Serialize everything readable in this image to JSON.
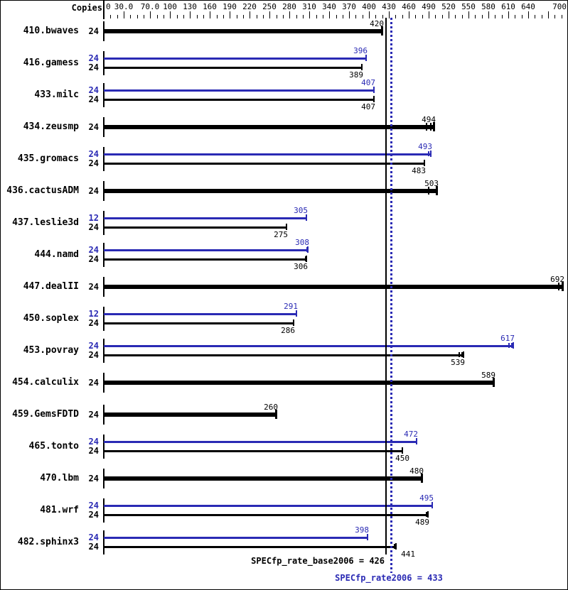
{
  "colors": {
    "base": "#000000",
    "peak": "#2a2ab4",
    "background": "#ffffff"
  },
  "chart_data": {
    "type": "bar",
    "orientation": "horizontal",
    "copies_header": "Copies",
    "xlabel": "",
    "ylabel": "",
    "xlim": [
      0,
      700
    ],
    "minor_tick_step": 10,
    "axis": {
      "long_ticks": [
        0,
        30,
        70,
        100,
        130,
        160,
        190,
        220,
        250,
        280,
        310,
        340,
        370,
        400,
        430,
        460,
        490,
        520,
        550,
        580,
        610,
        640,
        670,
        700
      ],
      "labels": [
        {
          "v": 0,
          "t": "0"
        },
        {
          "v": 30,
          "t": "30.0"
        },
        {
          "v": 70,
          "t": "70.0"
        },
        {
          "v": 100,
          "t": "100"
        },
        {
          "v": 130,
          "t": "130"
        },
        {
          "v": 160,
          "t": "160"
        },
        {
          "v": 190,
          "t": "190"
        },
        {
          "v": 220,
          "t": "220"
        },
        {
          "v": 250,
          "t": "250"
        },
        {
          "v": 280,
          "t": "280"
        },
        {
          "v": 310,
          "t": "310"
        },
        {
          "v": 340,
          "t": "340"
        },
        {
          "v": 370,
          "t": "370"
        },
        {
          "v": 400,
          "t": "400"
        },
        {
          "v": 430,
          "t": "430"
        },
        {
          "v": 460,
          "t": "460"
        },
        {
          "v": 490,
          "t": "490"
        },
        {
          "v": 520,
          "t": "520"
        },
        {
          "v": 550,
          "t": "550"
        },
        {
          "v": 580,
          "t": "580"
        },
        {
          "v": 610,
          "t": "610"
        },
        {
          "v": 640,
          "t": "640"
        },
        {
          "v": 700,
          "t": "700"
        }
      ]
    },
    "benchmarks": [
      {
        "name": "410.bwaves",
        "runs": [
          {
            "copies": "24",
            "kind": "base",
            "thick": true,
            "value": 420,
            "label": "420",
            "label_pos": "above"
          }
        ]
      },
      {
        "name": "416.gamess",
        "runs": [
          {
            "copies": "24",
            "kind": "peak",
            "value": 396,
            "label": "396",
            "label_pos": "above"
          },
          {
            "copies": "24",
            "kind": "base",
            "value": 389,
            "label": "389",
            "label_pos": "below"
          }
        ]
      },
      {
        "name": "433.milc",
        "runs": [
          {
            "copies": "24",
            "kind": "peak",
            "value": 407,
            "label": "407",
            "label_pos": "above"
          },
          {
            "copies": "24",
            "kind": "base",
            "value": 407,
            "label": "407",
            "label_pos": "below"
          }
        ]
      },
      {
        "name": "434.zeusmp",
        "runs": [
          {
            "copies": "24",
            "kind": "base",
            "thick": true,
            "value": 494,
            "label": "494",
            "label_pos": "above",
            "bar_end": 499,
            "marks": [
              486,
              492
            ]
          }
        ]
      },
      {
        "name": "435.gromacs",
        "runs": [
          {
            "copies": "24",
            "kind": "peak",
            "value": 493,
            "label": "493",
            "label_pos": "above",
            "marks": [
              489
            ]
          },
          {
            "copies": "24",
            "kind": "base",
            "value": 483,
            "label": "483",
            "label_pos": "below"
          }
        ]
      },
      {
        "name": "436.cactusADM",
        "runs": [
          {
            "copies": "24",
            "kind": "base",
            "thick": true,
            "value": 503,
            "label": "503",
            "label_pos": "above",
            "marks": [
              489
            ]
          }
        ]
      },
      {
        "name": "437.leslie3d",
        "runs": [
          {
            "copies": "12",
            "kind": "peak",
            "value": 305,
            "label": "305",
            "label_pos": "above"
          },
          {
            "copies": "24",
            "kind": "base",
            "value": 275,
            "label": "275",
            "label_pos": "below"
          }
        ]
      },
      {
        "name": "444.namd",
        "runs": [
          {
            "copies": "24",
            "kind": "peak",
            "value": 308,
            "label": "308",
            "label_pos": "above",
            "marks": [
              305
            ]
          },
          {
            "copies": "24",
            "kind": "base",
            "value": 306,
            "label": "306",
            "label_pos": "below",
            "marks": [
              303
            ]
          }
        ]
      },
      {
        "name": "447.dealII",
        "runs": [
          {
            "copies": "24",
            "kind": "base",
            "thick": true,
            "value": 692,
            "label": "692",
            "label_pos": "above",
            "marks": [
              685
            ]
          }
        ]
      },
      {
        "name": "450.soplex",
        "runs": [
          {
            "copies": "12",
            "kind": "peak",
            "value": 291,
            "label": "291",
            "label_pos": "above"
          },
          {
            "copies": "24",
            "kind": "base",
            "value": 286,
            "label": "286",
            "label_pos": "below"
          }
        ]
      },
      {
        "name": "453.povray",
        "runs": [
          {
            "copies": "24",
            "kind": "peak",
            "value": 617,
            "label": "617",
            "label_pos": "above",
            "marks": [
              610,
              614
            ]
          },
          {
            "copies": "24",
            "kind": "base",
            "value": 539,
            "label": "539",
            "label_pos": "below",
            "bar_end": 542,
            "marks": [
              535,
              539
            ]
          }
        ]
      },
      {
        "name": "454.calculix",
        "runs": [
          {
            "copies": "24",
            "kind": "base",
            "thick": true,
            "value": 589,
            "label": "589",
            "label_pos": "above"
          }
        ]
      },
      {
        "name": "459.GemsFDTD",
        "runs": [
          {
            "copies": "24",
            "kind": "base",
            "thick": true,
            "value": 260,
            "label": "260",
            "label_pos": "above"
          }
        ]
      },
      {
        "name": "465.tonto",
        "runs": [
          {
            "copies": "24",
            "kind": "peak",
            "value": 472,
            "label": "472",
            "label_pos": "above"
          },
          {
            "copies": "24",
            "kind": "base",
            "value": 450,
            "label": "450",
            "label_pos": "below",
            "label_dx": 8
          }
        ]
      },
      {
        "name": "470.lbm",
        "runs": [
          {
            "copies": "24",
            "kind": "base",
            "thick": true,
            "value": 480,
            "label": "480",
            "label_pos": "above"
          }
        ]
      },
      {
        "name": "481.wrf",
        "runs": [
          {
            "copies": "24",
            "kind": "peak",
            "value": 495,
            "label": "495",
            "label_pos": "above"
          },
          {
            "copies": "24",
            "kind": "base",
            "value": 489,
            "label": "489",
            "label_pos": "below",
            "marks": [
              486
            ]
          }
        ]
      },
      {
        "name": "482.sphinx3",
        "runs": [
          {
            "copies": "24",
            "kind": "peak",
            "value": 398,
            "label": "398",
            "label_pos": "above"
          },
          {
            "copies": "24",
            "kind": "base",
            "value": 441,
            "label": "441",
            "label_pos": "below",
            "marks": [
              437
            ],
            "label_dx": 25
          }
        ]
      }
    ],
    "reference_lines": [
      {
        "name": "base-metric-line",
        "value": 426,
        "style": "solid"
      },
      {
        "name": "peak-metric-line",
        "value": 433,
        "style": "dotted"
      }
    ],
    "footer": {
      "base": "SPECfp_rate_base2006 = 426",
      "peak": "SPECfp_rate2006 = 433"
    }
  }
}
